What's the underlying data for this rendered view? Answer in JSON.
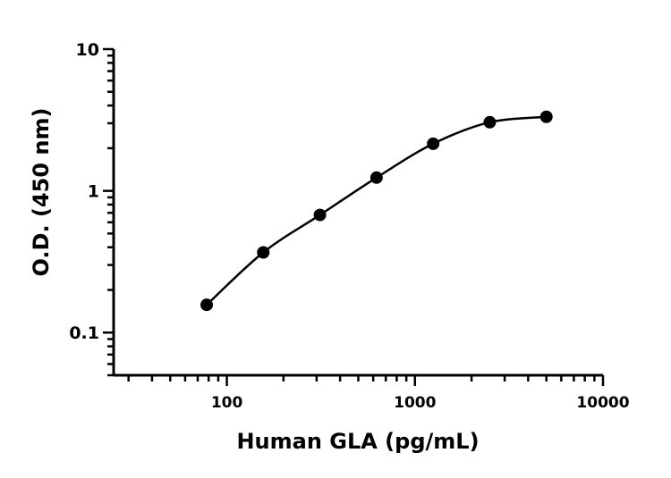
{
  "chart_data": {
    "type": "scatter",
    "title": "",
    "xlabel": "Human GLA (pg/mL)",
    "ylabel": "O.D. (450 nm)",
    "xscale": "log",
    "yscale": "log",
    "xlim": [
      25,
      10000
    ],
    "ylim": [
      0.05,
      10
    ],
    "xticks": [
      100,
      1000,
      10000
    ],
    "xtick_labels": [
      "100",
      "1000",
      "10000"
    ],
    "yticks": [
      0.1,
      1,
      10
    ],
    "ytick_labels": [
      "0.1",
      "1",
      "10"
    ],
    "grid": false,
    "fit_curve": true,
    "marker_color": "#000000",
    "points": [
      {
        "x": 78.125,
        "y": 0.157
      },
      {
        "x": 156.25,
        "y": 0.368
      },
      {
        "x": 312.5,
        "y": 0.676
      },
      {
        "x": 625,
        "y": 1.24
      },
      {
        "x": 1250,
        "y": 2.15
      },
      {
        "x": 2500,
        "y": 3.05
      },
      {
        "x": 5000,
        "y": 3.33
      }
    ]
  }
}
